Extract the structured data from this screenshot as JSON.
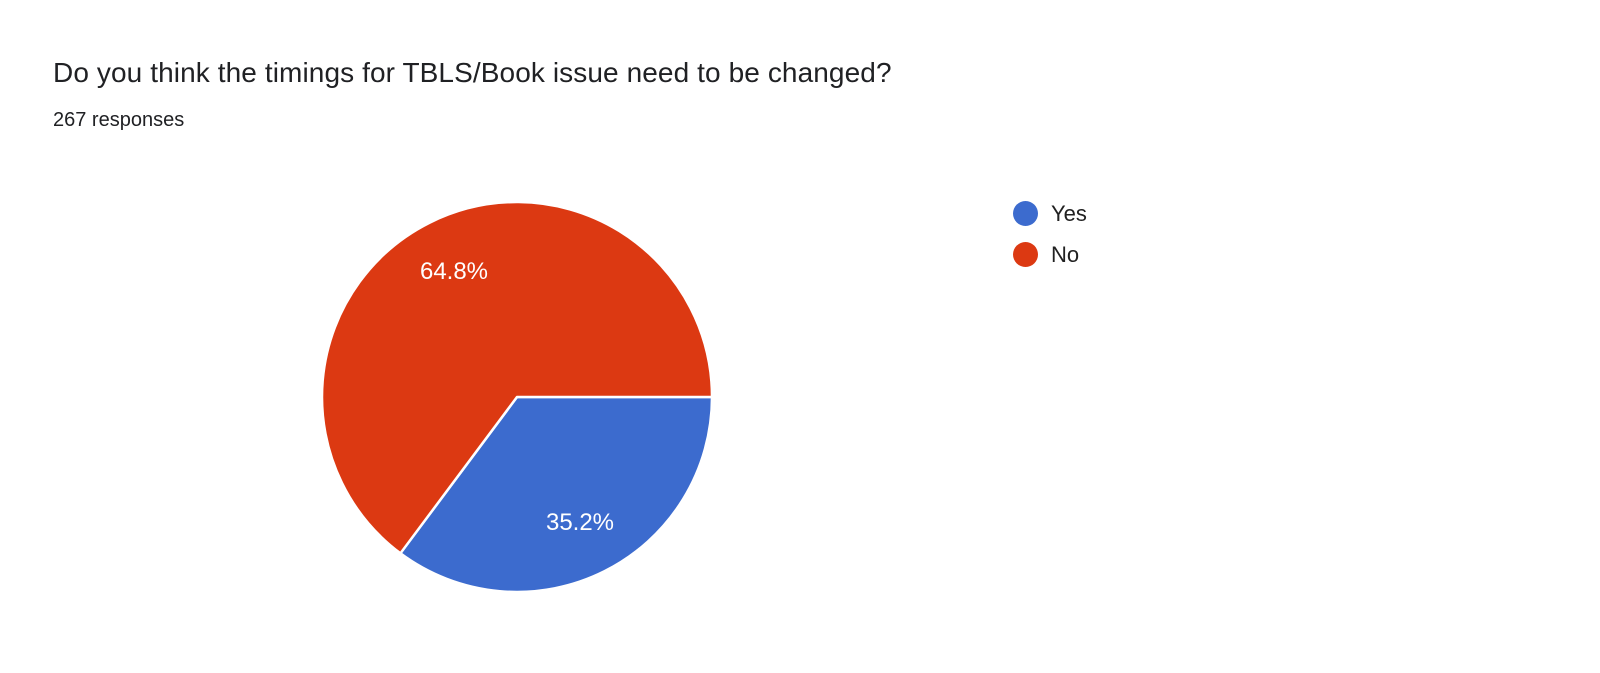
{
  "header": {
    "title": "Do you think the timings for TBLS/Book issue need to be changed?",
    "subtitle": "267 responses"
  },
  "chart_data": {
    "type": "pie",
    "title": "Do you think the timings for TBLS/Book issue need to be changed?",
    "subtitle": "267 responses",
    "total_responses": 267,
    "categories": [
      "Yes",
      "No"
    ],
    "values": [
      35.2,
      64.8
    ],
    "slice_labels": [
      "35.2%",
      "64.8%"
    ],
    "colors": [
      "#3c6bce",
      "#dc3912"
    ],
    "slice_label_color": "#ffffff",
    "legend_position": "right",
    "start_angle_deg": 0,
    "direction": "clockwise"
  },
  "legend": {
    "items": [
      {
        "label": "Yes",
        "color": "#3c6bce"
      },
      {
        "label": "No",
        "color": "#dc3912"
      }
    ]
  }
}
